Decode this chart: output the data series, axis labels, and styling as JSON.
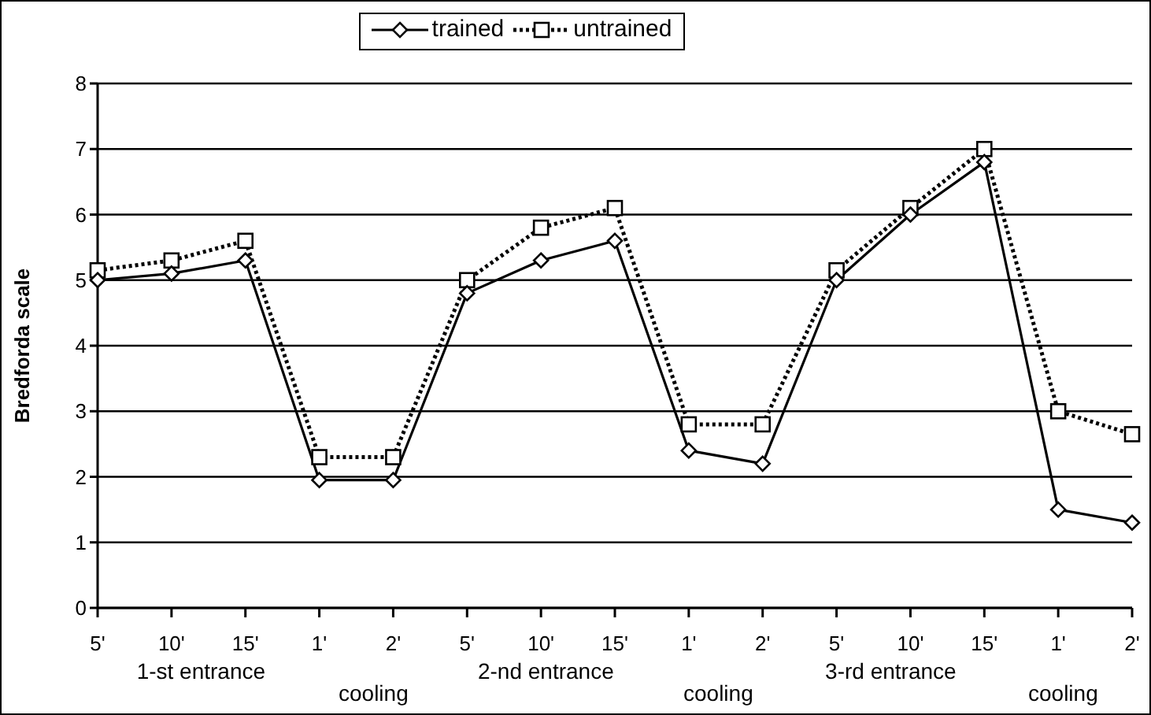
{
  "chart_data": {
    "type": "line",
    "ylabel": "Bredforda scale",
    "categories": [
      "5'",
      "10'",
      "15'",
      "1'",
      "2'",
      "5'",
      "10'",
      "15'",
      "1'",
      "2'",
      "5'",
      "10'",
      "15'",
      "1'",
      "2'"
    ],
    "annotations": [
      "1-st entrance",
      "cooling",
      "2-nd entrance",
      "cooling",
      "3-rd entrance",
      "cooling"
    ],
    "series": [
      {
        "name": "trained",
        "color": "#000000",
        "marker": "diamond",
        "line_style": "solid",
        "values": [
          5.0,
          5.1,
          5.3,
          1.95,
          1.95,
          4.8,
          5.3,
          5.6,
          2.4,
          2.2,
          5.0,
          6.0,
          6.8,
          1.5,
          1.3
        ]
      },
      {
        "name": "untrained",
        "color": "#000000",
        "marker": "square",
        "line_style": "dotted",
        "values": [
          5.15,
          5.3,
          5.6,
          2.3,
          2.3,
          5.0,
          5.8,
          6.1,
          2.8,
          2.8,
          5.15,
          6.1,
          7.0,
          3.0,
          2.65
        ]
      }
    ],
    "ylim": [
      0,
      8
    ],
    "yticks": [
      0,
      1,
      2,
      3,
      4,
      5,
      6,
      7,
      8
    ],
    "grid": "y",
    "legend": "top"
  }
}
